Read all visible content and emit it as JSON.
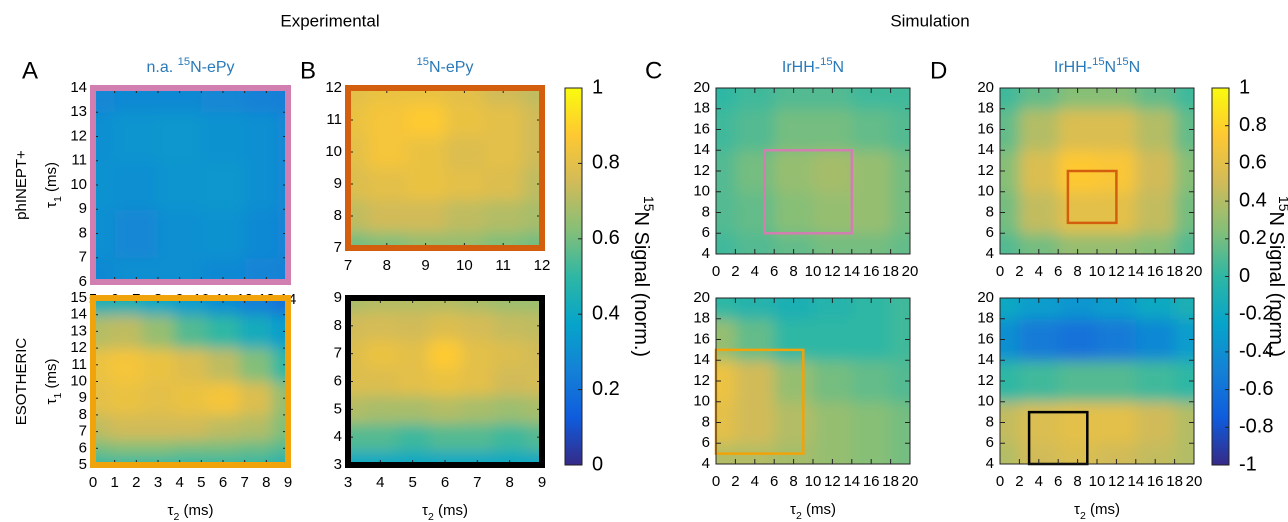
{
  "headings": [
    "Experimental",
    "Simulation"
  ],
  "colorbars": [
    {
      "colormap": "parula",
      "clim": [
        0,
        1
      ],
      "ticks": [
        0,
        0.2,
        0.4,
        0.6,
        0.8,
        1
      ],
      "label": [
        {
          "text": "15",
          "sup": true
        },
        {
          "text": "N Signal (norm.)"
        }
      ]
    },
    {
      "colormap": "parula",
      "clim": [
        -1,
        1
      ],
      "ticks": [
        -1,
        -0.8,
        -0.6,
        -0.4,
        -0.2,
        0,
        0.2,
        0.4,
        0.6,
        0.8,
        1
      ],
      "label": [
        {
          "text": "15",
          "sup": true
        },
        {
          "text": "N Signal (norm.)"
        }
      ]
    }
  ],
  "chart_data": [
    {
      "type": "heatmap",
      "letter": "A",
      "title": [
        {
          "text": "n.a. "
        },
        {
          "text": "15",
          "sup": true
        },
        {
          "text": "N-ePy"
        }
      ],
      "row_label": "phINEPT+",
      "ylabel": [
        {
          "text": "τ"
        },
        {
          "text": "1",
          "sub": true
        },
        {
          "text": " (ms)"
        }
      ],
      "colorbar": 0,
      "frame_color": "#d17fb0",
      "xlim": [
        5,
        14
      ],
      "ylim": [
        6,
        14
      ],
      "xticks": [
        5,
        6,
        7,
        8,
        9,
        10,
        11,
        12,
        13,
        14
      ],
      "yticks": [
        6,
        7,
        8,
        9,
        10,
        11,
        12,
        13,
        14
      ],
      "x": [
        5,
        7,
        9,
        11,
        13,
        14
      ],
      "y": [
        6,
        8,
        10,
        12,
        14
      ],
      "z": [
        [
          0.28,
          0.3,
          0.3,
          0.28,
          0.26,
          0.25
        ],
        [
          0.3,
          0.27,
          0.3,
          0.31,
          0.28,
          0.26
        ],
        [
          0.31,
          0.3,
          0.32,
          0.33,
          0.3,
          0.27
        ],
        [
          0.3,
          0.32,
          0.33,
          0.31,
          0.3,
          0.27
        ],
        [
          0.27,
          0.28,
          0.28,
          0.27,
          0.25,
          0.24
        ]
      ]
    },
    {
      "type": "heatmap",
      "row_label": "ESOTHERIC",
      "ylabel": [
        {
          "text": "τ"
        },
        {
          "text": "1",
          "sub": true
        },
        {
          "text": " (ms)"
        }
      ],
      "xlabel": [
        {
          "text": "τ"
        },
        {
          "text": "2",
          "sub": true
        },
        {
          "text": " (ms)"
        }
      ],
      "colorbar": 0,
      "frame_color": "#f0a30a",
      "xlim": [
        0,
        9
      ],
      "ylim": [
        5,
        15
      ],
      "xticks": [
        0,
        1,
        2,
        3,
        4,
        5,
        6,
        7,
        8,
        9
      ],
      "yticks": [
        5,
        6,
        7,
        8,
        9,
        10,
        11,
        12,
        13,
        14,
        15
      ],
      "x": [
        0,
        1.5,
        3,
        4.5,
        6,
        7.5,
        9
      ],
      "y": [
        5,
        6,
        7,
        9,
        11,
        13,
        15
      ],
      "z": [
        [
          0.5,
          0.5,
          0.5,
          0.5,
          0.5,
          0.5,
          0.45
        ],
        [
          0.6,
          0.62,
          0.62,
          0.6,
          0.6,
          0.58,
          0.55
        ],
        [
          0.72,
          0.75,
          0.75,
          0.75,
          0.72,
          0.7,
          0.62
        ],
        [
          0.8,
          0.82,
          0.8,
          0.82,
          0.85,
          0.78,
          0.65
        ],
        [
          0.82,
          0.85,
          0.82,
          0.78,
          0.72,
          0.62,
          0.5
        ],
        [
          0.7,
          0.72,
          0.65,
          0.55,
          0.5,
          0.42,
          0.35
        ],
        [
          0.45,
          0.45,
          0.4,
          0.35,
          0.3,
          0.25,
          0.2
        ]
      ]
    },
    {
      "type": "heatmap",
      "letter": "B",
      "title": [
        {
          "text": "15",
          "sup": true
        },
        {
          "text": "N-ePy"
        }
      ],
      "colorbar": 0,
      "frame_color": "#d35f0e",
      "xlim": [
        7,
        12
      ],
      "ylim": [
        7,
        12
      ],
      "xticks": [
        7,
        8,
        9,
        10,
        11,
        12
      ],
      "yticks": [
        7,
        8,
        9,
        10,
        11,
        12
      ],
      "x": [
        7,
        8,
        9,
        10,
        11,
        12
      ],
      "y": [
        7,
        8,
        9,
        10,
        11,
        12
      ],
      "z": [
        [
          0.6,
          0.62,
          0.65,
          0.65,
          0.62,
          0.6
        ],
        [
          0.72,
          0.75,
          0.75,
          0.72,
          0.7,
          0.68
        ],
        [
          0.78,
          0.8,
          0.82,
          0.8,
          0.78,
          0.72
        ],
        [
          0.8,
          0.85,
          0.82,
          0.78,
          0.8,
          0.75
        ],
        [
          0.82,
          0.85,
          0.88,
          0.82,
          0.8,
          0.75
        ],
        [
          0.8,
          0.82,
          0.82,
          0.8,
          0.75,
          0.72
        ]
      ]
    },
    {
      "type": "heatmap",
      "xlabel": [
        {
          "text": "τ"
        },
        {
          "text": "2",
          "sub": true
        },
        {
          "text": " (ms)"
        }
      ],
      "colorbar": 0,
      "frame_color": "#000000",
      "xlim": [
        3,
        9
      ],
      "ylim": [
        3,
        9
      ],
      "xticks": [
        3,
        4,
        5,
        6,
        7,
        8,
        9
      ],
      "yticks": [
        3,
        4,
        5,
        6,
        7,
        8,
        9
      ],
      "x": [
        3,
        4,
        5,
        6,
        7,
        8,
        9
      ],
      "y": [
        3,
        4,
        5,
        6,
        7,
        8,
        9
      ],
      "z": [
        [
          0.4,
          0.4,
          0.4,
          0.4,
          0.4,
          0.4,
          0.4
        ],
        [
          0.55,
          0.55,
          0.52,
          0.55,
          0.55,
          0.52,
          0.55
        ],
        [
          0.7,
          0.68,
          0.68,
          0.7,
          0.68,
          0.66,
          0.68
        ],
        [
          0.78,
          0.78,
          0.8,
          0.82,
          0.8,
          0.75,
          0.76
        ],
        [
          0.78,
          0.82,
          0.8,
          0.88,
          0.8,
          0.78,
          0.75
        ],
        [
          0.75,
          0.76,
          0.75,
          0.78,
          0.76,
          0.73,
          0.72
        ],
        [
          0.68,
          0.7,
          0.7,
          0.7,
          0.68,
          0.66,
          0.66
        ]
      ]
    },
    {
      "type": "heatmap",
      "letter": "C",
      "title": [
        {
          "text": "IrHH-"
        },
        {
          "text": "15",
          "sup": true
        },
        {
          "text": "N"
        }
      ],
      "colorbar": 1,
      "xlim": [
        0,
        20
      ],
      "ylim": [
        4,
        20
      ],
      "xticks": [
        0,
        2,
        4,
        6,
        8,
        10,
        12,
        14,
        16,
        18,
        20
      ],
      "yticks": [
        4,
        6,
        8,
        10,
        12,
        14,
        16,
        18,
        20
      ],
      "x": [
        0,
        4,
        8,
        12,
        16,
        20
      ],
      "y": [
        4,
        8,
        12,
        16,
        20
      ],
      "z": [
        [
          0.05,
          0.1,
          0.15,
          0.2,
          0.2,
          0.15
        ],
        [
          0.1,
          0.15,
          0.25,
          0.3,
          0.3,
          0.2
        ],
        [
          0.1,
          0.2,
          0.3,
          0.35,
          0.3,
          0.2
        ],
        [
          0.05,
          0.1,
          0.2,
          0.2,
          0.15,
          0.1
        ],
        [
          0,
          0.05,
          0.1,
          0.1,
          0.05,
          0.05
        ]
      ],
      "box": {
        "x": [
          5,
          14
        ],
        "y": [
          6,
          14
        ],
        "color": "#d17fb0"
      }
    },
    {
      "type": "heatmap",
      "xlabel": [
        {
          "text": "τ"
        },
        {
          "text": "2",
          "sub": true
        },
        {
          "text": " (ms)"
        }
      ],
      "colorbar": 1,
      "xlim": [
        0,
        20
      ],
      "ylim": [
        4,
        20
      ],
      "xticks": [
        0,
        2,
        4,
        6,
        8,
        10,
        12,
        14,
        16,
        18,
        20
      ],
      "yticks": [
        4,
        6,
        8,
        10,
        12,
        14,
        16,
        18,
        20
      ],
      "x": [
        0,
        4,
        8,
        12,
        16,
        20
      ],
      "y": [
        4,
        8,
        12,
        16,
        20
      ],
      "z": [
        [
          0.4,
          0.4,
          0.35,
          0.3,
          0.25,
          0.2
        ],
        [
          0.6,
          0.5,
          0.4,
          0.3,
          0.25,
          0.2
        ],
        [
          0.65,
          0.5,
          0.3,
          0.2,
          0.15,
          0.1
        ],
        [
          0.3,
          0.15,
          0,
          0,
          0,
          0.05
        ],
        [
          0,
          -0.05,
          -0.1,
          -0.05,
          0,
          0.05
        ]
      ],
      "box": {
        "x": [
          0,
          9
        ],
        "y": [
          5,
          15
        ],
        "color": "#f0a30a"
      }
    },
    {
      "type": "heatmap",
      "letter": "D",
      "title": [
        {
          "text": "IrHH-"
        },
        {
          "text": "15",
          "sup": true
        },
        {
          "text": "N"
        },
        {
          "text": "15",
          "sup": true
        },
        {
          "text": "N"
        }
      ],
      "colorbar": 1,
      "xlim": [
        0,
        20
      ],
      "ylim": [
        4,
        20
      ],
      "xticks": [
        0,
        2,
        4,
        6,
        8,
        10,
        12,
        14,
        16,
        18,
        20
      ],
      "yticks": [
        4,
        6,
        8,
        10,
        12,
        14,
        16,
        18,
        20
      ],
      "x": [
        0,
        4,
        8,
        12,
        16,
        20
      ],
      "y": [
        4,
        8,
        12,
        16,
        20
      ],
      "z": [
        [
          0.1,
          0.2,
          0.3,
          0.3,
          0.25,
          0.1
        ],
        [
          0.2,
          0.45,
          0.6,
          0.6,
          0.45,
          0.2
        ],
        [
          0.25,
          0.55,
          0.75,
          0.72,
          0.5,
          0.25
        ],
        [
          0.15,
          0.4,
          0.55,
          0.55,
          0.4,
          0.15
        ],
        [
          0.05,
          0.15,
          0.25,
          0.25,
          0.15,
          0.05
        ]
      ],
      "box": {
        "x": [
          7,
          12
        ],
        "y": [
          7,
          12
        ],
        "color": "#d35f0e"
      }
    },
    {
      "type": "heatmap",
      "xlabel": [
        {
          "text": "τ"
        },
        {
          "text": "2",
          "sub": true
        },
        {
          "text": " (ms)"
        }
      ],
      "colorbar": 1,
      "xlim": [
        0,
        20
      ],
      "ylim": [
        4,
        20
      ],
      "xticks": [
        0,
        2,
        4,
        6,
        8,
        10,
        12,
        14,
        16,
        18,
        20
      ],
      "yticks": [
        4,
        6,
        8,
        10,
        12,
        14,
        16,
        18,
        20
      ],
      "x": [
        0,
        4,
        8,
        12,
        16,
        20
      ],
      "y": [
        4,
        8,
        12,
        16,
        20
      ],
      "z": [
        [
          0.4,
          0.5,
          0.55,
          0.5,
          0.45,
          0.4
        ],
        [
          0.45,
          0.55,
          0.6,
          0.6,
          0.5,
          0.4
        ],
        [
          0,
          0.05,
          0.1,
          0.1,
          0.05,
          0
        ],
        [
          -0.4,
          -0.55,
          -0.6,
          -0.55,
          -0.45,
          -0.3
        ],
        [
          -0.2,
          -0.3,
          -0.35,
          -0.3,
          -0.2,
          -0.1
        ]
      ],
      "box": {
        "x": [
          3,
          9
        ],
        "y": [
          4,
          9
        ],
        "color": "#000000"
      }
    }
  ]
}
